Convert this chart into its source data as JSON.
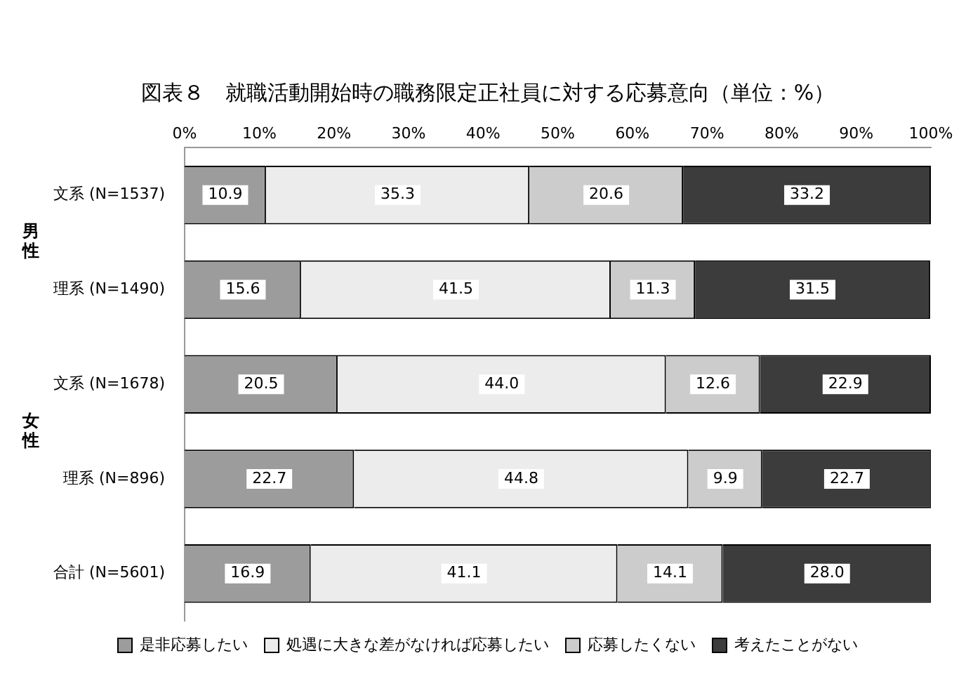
{
  "chart_data": {
    "type": "bar",
    "orientation": "horizontal",
    "stacked": true,
    "title": "図表８　就職活動開始時の職務限定正社員に対する応募意向（単位：%）",
    "categories": [
      "文系 (N=1537)",
      "理系 (N=1490)",
      "文系 (N=1678)",
      "理系 (N=896)",
      "合計 (N=5601)"
    ],
    "series": [
      {
        "name": "是非応募したい",
        "color": "#9c9c9c",
        "values": [
          10.9,
          15.6,
          20.5,
          22.7,
          16.9
        ],
        "value_labels": [
          "10.9",
          "15.6",
          "20.5",
          "22.7",
          "16.9"
        ]
      },
      {
        "name": "処遇に大きな差がなければ応募したい",
        "color": "#ececec",
        "values": [
          35.3,
          41.5,
          44.0,
          44.8,
          41.1
        ],
        "value_labels": [
          "35.3",
          "41.5",
          "44.0",
          "44.8",
          "41.1"
        ]
      },
      {
        "name": "応募したくない",
        "color": "#cccccc",
        "values": [
          20.6,
          11.3,
          12.6,
          9.9,
          14.1
        ],
        "value_labels": [
          "20.6",
          "11.3",
          "12.6",
          "9.9",
          "14.1"
        ]
      },
      {
        "name": "考えたことがない",
        "color": "#3c3c3c",
        "values": [
          33.2,
          31.5,
          22.9,
          22.7,
          28.0
        ],
        "value_labels": [
          "33.2",
          "31.5",
          "22.9",
          "22.7",
          "28.0"
        ]
      }
    ],
    "xlim": [
      0,
      100
    ],
    "xticks": [
      {
        "value": 0,
        "label": "0%"
      },
      {
        "value": 10,
        "label": "10%"
      },
      {
        "value": 20,
        "label": "20%"
      },
      {
        "value": 30,
        "label": "30%"
      },
      {
        "value": 40,
        "label": "40%"
      },
      {
        "value": 50,
        "label": "50%"
      },
      {
        "value": 60,
        "label": "60%"
      },
      {
        "value": 70,
        "label": "70%"
      },
      {
        "value": 80,
        "label": "80%"
      },
      {
        "value": 90,
        "label": "90%"
      },
      {
        "value": 100,
        "label": "100%"
      }
    ],
    "annotations": [
      "男性",
      "女性"
    ],
    "legend": "bottom",
    "grid": false
  }
}
